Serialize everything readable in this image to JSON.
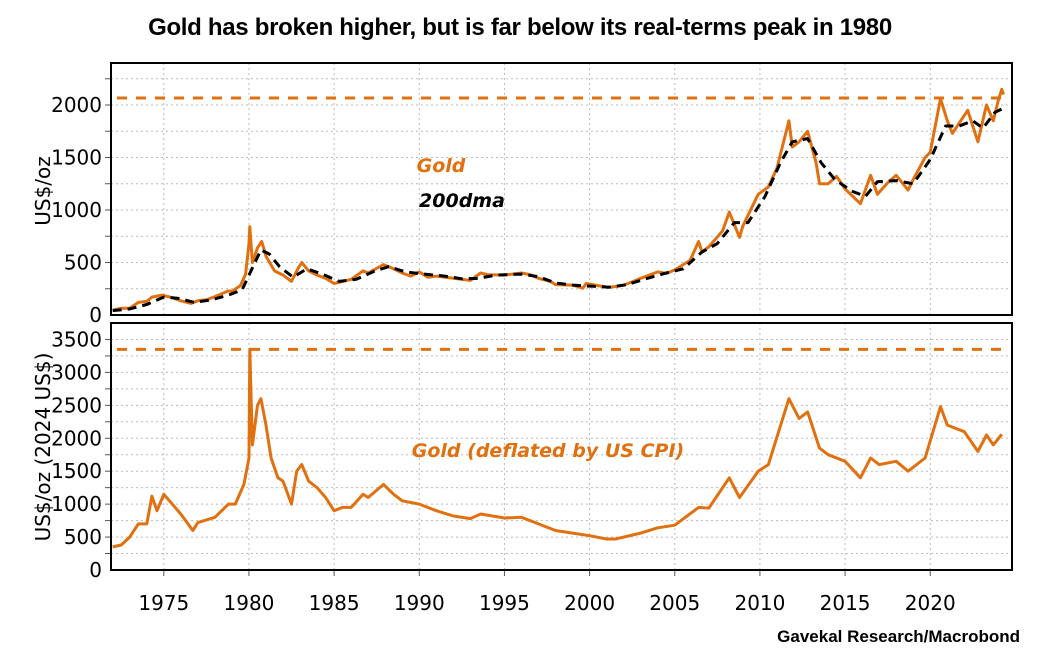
{
  "title": "Gold has broken higher, but is far below its real-terms peak in 1980",
  "source": "Gavekal Research/Macrobond",
  "colors": {
    "gold": "#E07010",
    "dma": "#000000",
    "grid": "#bbbbbb"
  },
  "chart_data": [
    {
      "type": "line",
      "ylabel": "US$/oz",
      "xlim": [
        1971.9,
        2024.8
      ],
      "ylim": [
        0,
        2400
      ],
      "yticks": [
        0,
        500,
        1000,
        1500,
        2000
      ],
      "grid": true,
      "reference_line": {
        "y": 2067,
        "color": "#E07010",
        "style": "dashed"
      },
      "annotations": [
        {
          "text": "Gold",
          "color": "#E07010"
        },
        {
          "text": "200dma",
          "color": "#000000"
        }
      ],
      "series": [
        {
          "name": "Gold",
          "color": "#E07010",
          "style": "solid",
          "points": [
            [
              1972.0,
              46
            ],
            [
              1972.5,
              65
            ],
            [
              1973.0,
              65
            ],
            [
              1973.5,
              120
            ],
            [
              1974.0,
              130
            ],
            [
              1974.3,
              170
            ],
            [
              1974.9,
              190
            ],
            [
              1975.5,
              165
            ],
            [
              1976.0,
              135
            ],
            [
              1976.6,
              110
            ],
            [
              1977.0,
              135
            ],
            [
              1977.5,
              145
            ],
            [
              1978.0,
              175
            ],
            [
              1978.8,
              230
            ],
            [
              1979.0,
              225
            ],
            [
              1979.5,
              280
            ],
            [
              1979.8,
              390
            ],
            [
              1980.0,
              680
            ],
            [
              1980.05,
              840
            ],
            [
              1980.2,
              500
            ],
            [
              1980.5,
              640
            ],
            [
              1980.75,
              700
            ],
            [
              1981.0,
              560
            ],
            [
              1981.5,
              420
            ],
            [
              1982.0,
              380
            ],
            [
              1982.5,
              320
            ],
            [
              1982.9,
              450
            ],
            [
              1983.1,
              500
            ],
            [
              1983.5,
              420
            ],
            [
              1984.0,
              380
            ],
            [
              1984.5,
              350
            ],
            [
              1985.0,
              300
            ],
            [
              1985.5,
              320
            ],
            [
              1986.0,
              340
            ],
            [
              1986.7,
              420
            ],
            [
              1987.0,
              400
            ],
            [
              1987.9,
              480
            ],
            [
              1988.5,
              440
            ],
            [
              1989.0,
              400
            ],
            [
              1989.5,
              370
            ],
            [
              1990.0,
              410
            ],
            [
              1990.5,
              360
            ],
            [
              1991.0,
              370
            ],
            [
              1992.0,
              350
            ],
            [
              1993.0,
              330
            ],
            [
              1993.6,
              400
            ],
            [
              1994.0,
              385
            ],
            [
              1995.0,
              380
            ],
            [
              1996.0,
              400
            ],
            [
              1996.5,
              385
            ],
            [
              1997.0,
              350
            ],
            [
              1997.7,
              320
            ],
            [
              1998.0,
              290
            ],
            [
              1999.0,
              285
            ],
            [
              1999.6,
              255
            ],
            [
              1999.8,
              300
            ],
            [
              2000.5,
              280
            ],
            [
              2001.0,
              265
            ],
            [
              2001.5,
              270
            ],
            [
              2002.0,
              285
            ],
            [
              2002.5,
              315
            ],
            [
              2003.0,
              350
            ],
            [
              2004.0,
              410
            ],
            [
              2004.5,
              395
            ],
            [
              2005.0,
              430
            ],
            [
              2005.9,
              520
            ],
            [
              2006.4,
              700
            ],
            [
              2006.6,
              600
            ],
            [
              2007.0,
              650
            ],
            [
              2007.8,
              800
            ],
            [
              2008.2,
              980
            ],
            [
              2008.8,
              740
            ],
            [
              2009.0,
              850
            ],
            [
              2009.9,
              1150
            ],
            [
              2010.5,
              1220
            ],
            [
              2011.0,
              1400
            ],
            [
              2011.7,
              1850
            ],
            [
              2011.9,
              1600
            ],
            [
              2012.3,
              1650
            ],
            [
              2012.8,
              1750
            ],
            [
              2013.3,
              1450
            ],
            [
              2013.5,
              1250
            ],
            [
              2014.0,
              1250
            ],
            [
              2014.5,
              1320
            ],
            [
              2015.0,
              1200
            ],
            [
              2015.9,
              1060
            ],
            [
              2016.5,
              1330
            ],
            [
              2016.9,
              1150
            ],
            [
              2017.5,
              1260
            ],
            [
              2018.0,
              1330
            ],
            [
              2018.7,
              1190
            ],
            [
              2019.0,
              1290
            ],
            [
              2019.7,
              1500
            ],
            [
              2020.0,
              1550
            ],
            [
              2020.6,
              2060
            ],
            [
              2021.0,
              1850
            ],
            [
              2021.3,
              1730
            ],
            [
              2022.2,
              1950
            ],
            [
              2022.8,
              1650
            ],
            [
              2023.3,
              2000
            ],
            [
              2023.7,
              1850
            ],
            [
              2024.0,
              2050
            ],
            [
              2024.2,
              2150
            ],
            [
              2024.3,
              2100
            ]
          ]
        },
        {
          "name": "200dma",
          "color": "#000000",
          "style": "dashed",
          "points": [
            [
              1972.0,
              42
            ],
            [
              1973.0,
              58
            ],
            [
              1974.0,
              100
            ],
            [
              1975.0,
              170
            ],
            [
              1975.8,
              160
            ],
            [
              1976.8,
              120
            ],
            [
              1977.8,
              145
            ],
            [
              1978.8,
              190
            ],
            [
              1979.6,
              240
            ],
            [
              1980.0,
              380
            ],
            [
              1980.7,
              620
            ],
            [
              1981.2,
              580
            ],
            [
              1981.8,
              460
            ],
            [
              1982.6,
              360
            ],
            [
              1983.4,
              440
            ],
            [
              1984.3,
              390
            ],
            [
              1985.3,
              320
            ],
            [
              1986.3,
              340
            ],
            [
              1987.4,
              420
            ],
            [
              1988.2,
              460
            ],
            [
              1989.2,
              410
            ],
            [
              1990.3,
              390
            ],
            [
              1991.5,
              370
            ],
            [
              1992.5,
              345
            ],
            [
              1993.5,
              350
            ],
            [
              1994.5,
              380
            ],
            [
              1996.0,
              390
            ],
            [
              1997.0,
              365
            ],
            [
              1998.0,
              305
            ],
            [
              1999.0,
              285
            ],
            [
              2000.0,
              275
            ],
            [
              2001.2,
              265
            ],
            [
              2002.2,
              290
            ],
            [
              2003.2,
              340
            ],
            [
              2004.5,
              400
            ],
            [
              2005.5,
              440
            ],
            [
              2006.6,
              600
            ],
            [
              2007.5,
              680
            ],
            [
              2008.5,
              880
            ],
            [
              2009.3,
              880
            ],
            [
              2010.3,
              1130
            ],
            [
              2011.2,
              1450
            ],
            [
              2011.9,
              1650
            ],
            [
              2012.8,
              1680
            ],
            [
              2013.6,
              1450
            ],
            [
              2014.4,
              1290
            ],
            [
              2015.4,
              1180
            ],
            [
              2016.2,
              1130
            ],
            [
              2016.9,
              1270
            ],
            [
              2018.0,
              1280
            ],
            [
              2019.0,
              1250
            ],
            [
              2020.0,
              1480
            ],
            [
              2020.9,
              1800
            ],
            [
              2021.7,
              1800
            ],
            [
              2022.5,
              1850
            ],
            [
              2023.1,
              1780
            ],
            [
              2023.8,
              1930
            ],
            [
              2024.3,
              1970
            ]
          ]
        }
      ]
    },
    {
      "type": "line",
      "ylabel": "US$/oz (2024 US$)",
      "xlim": [
        1971.9,
        2024.8
      ],
      "ylim": [
        0,
        3750
      ],
      "yticks": [
        0,
        500,
        1000,
        1500,
        2000,
        2500,
        3000,
        3500
      ],
      "xticks": [
        1975,
        1980,
        1985,
        1990,
        1995,
        2000,
        2005,
        2010,
        2015,
        2020
      ],
      "grid": true,
      "reference_line": {
        "y": 3350,
        "color": "#E07010",
        "style": "dashed"
      },
      "annotations": [
        {
          "text": "Gold (deflated by US CPI)",
          "color": "#E07010"
        }
      ],
      "series": [
        {
          "name": "Gold (deflated by US CPI)",
          "color": "#E07010",
          "style": "solid",
          "points": [
            [
              1972.0,
              350
            ],
            [
              1972.5,
              380
            ],
            [
              1973.0,
              500
            ],
            [
              1973.5,
              700
            ],
            [
              1974.0,
              700
            ],
            [
              1974.3,
              1120
            ],
            [
              1974.6,
              900
            ],
            [
              1975.0,
              1150
            ],
            [
              1975.5,
              1000
            ],
            [
              1976.0,
              850
            ],
            [
              1976.7,
              600
            ],
            [
              1977.0,
              720
            ],
            [
              1978.0,
              800
            ],
            [
              1978.8,
              1000
            ],
            [
              1979.2,
              1000
            ],
            [
              1979.7,
              1300
            ],
            [
              1980.0,
              1700
            ],
            [
              1980.05,
              3350
            ],
            [
              1980.2,
              1900
            ],
            [
              1980.5,
              2500
            ],
            [
              1980.7,
              2600
            ],
            [
              1981.0,
              2200
            ],
            [
              1981.3,
              1700
            ],
            [
              1981.7,
              1400
            ],
            [
              1982.0,
              1350
            ],
            [
              1982.5,
              1000
            ],
            [
              1982.8,
              1500
            ],
            [
              1983.1,
              1600
            ],
            [
              1983.5,
              1350
            ],
            [
              1984.0,
              1250
            ],
            [
              1984.5,
              1100
            ],
            [
              1985.0,
              900
            ],
            [
              1985.5,
              950
            ],
            [
              1986.0,
              950
            ],
            [
              1986.7,
              1150
            ],
            [
              1987.0,
              1100
            ],
            [
              1987.9,
              1300
            ],
            [
              1988.5,
              1150
            ],
            [
              1989.0,
              1050
            ],
            [
              1990.0,
              1000
            ],
            [
              1991.0,
              900
            ],
            [
              1992.0,
              820
            ],
            [
              1993.0,
              780
            ],
            [
              1993.6,
              850
            ],
            [
              1995.0,
              790
            ],
            [
              1996.0,
              800
            ],
            [
              1997.0,
              700
            ],
            [
              1998.0,
              600
            ],
            [
              1999.0,
              560
            ],
            [
              2000.0,
              520
            ],
            [
              2001.0,
              470
            ],
            [
              2001.5,
              470
            ],
            [
              2002.0,
              500
            ],
            [
              2003.0,
              560
            ],
            [
              2004.0,
              640
            ],
            [
              2005.0,
              680
            ],
            [
              2006.4,
              950
            ],
            [
              2007.0,
              940
            ],
            [
              2008.2,
              1400
            ],
            [
              2008.8,
              1100
            ],
            [
              2009.9,
              1500
            ],
            [
              2010.5,
              1600
            ],
            [
              2011.7,
              2600
            ],
            [
              2012.3,
              2300
            ],
            [
              2012.8,
              2400
            ],
            [
              2013.5,
              1850
            ],
            [
              2014.0,
              1750
            ],
            [
              2015.0,
              1650
            ],
            [
              2015.9,
              1400
            ],
            [
              2016.5,
              1700
            ],
            [
              2017.0,
              1600
            ],
            [
              2018.0,
              1650
            ],
            [
              2018.7,
              1500
            ],
            [
              2019.7,
              1700
            ],
            [
              2020.6,
              2480
            ],
            [
              2021.0,
              2200
            ],
            [
              2022.0,
              2100
            ],
            [
              2022.8,
              1800
            ],
            [
              2023.3,
              2050
            ],
            [
              2023.7,
              1900
            ],
            [
              2024.2,
              2060
            ]
          ]
        }
      ]
    }
  ]
}
